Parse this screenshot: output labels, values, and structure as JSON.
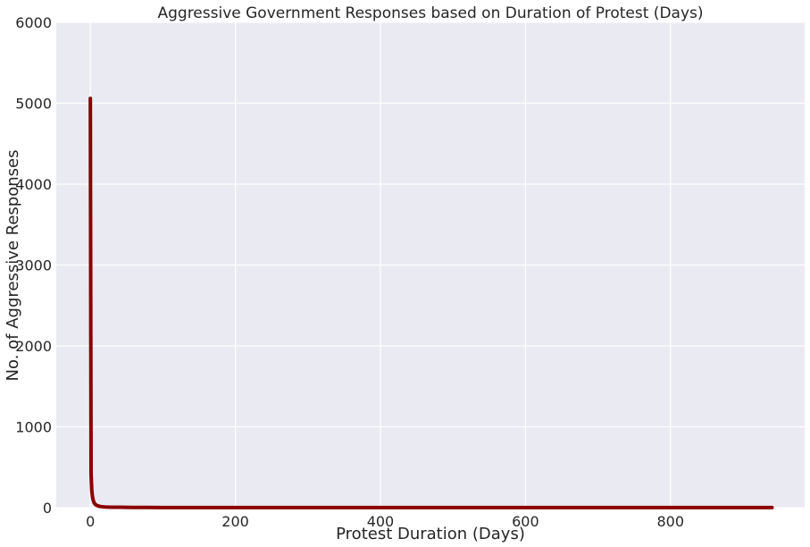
{
  "chart_data": {
    "type": "line",
    "title": "Aggressive Government Responses based on Duration of Protest (Days)",
    "xlabel": "Protest Duration (Days)",
    "ylabel": "No. of Aggressive Responses",
    "xlim": [
      -47,
      985
    ],
    "ylim": [
      0,
      6000
    ],
    "xticks": [
      0,
      200,
      400,
      600,
      800
    ],
    "yticks": [
      0,
      1000,
      2000,
      3000,
      4000,
      5000,
      6000
    ],
    "xtick_labels": [
      "0",
      "200",
      "400",
      "600",
      "800"
    ],
    "ytick_labels": [
      "0",
      "1000",
      "2000",
      "3000",
      "4000",
      "5000",
      "6000"
    ],
    "grid": true,
    "background_color": "#eaeaf2",
    "grid_color": "#ffffff",
    "series": [
      {
        "color": "#8b0000",
        "x": [
          0,
          1,
          2,
          3,
          4,
          5,
          6,
          7,
          8,
          10,
          12,
          15,
          20,
          25,
          30,
          40,
          50,
          60,
          80,
          100,
          150,
          200,
          300,
          400,
          500,
          600,
          700,
          800,
          900,
          940
        ],
        "y": [
          5060,
          420,
          210,
          130,
          90,
          65,
          50,
          40,
          32,
          24,
          18,
          13,
          9,
          7,
          6,
          5,
          4,
          3,
          3,
          2,
          2,
          1,
          1,
          1,
          1,
          1,
          1,
          1,
          1,
          1
        ]
      }
    ]
  }
}
